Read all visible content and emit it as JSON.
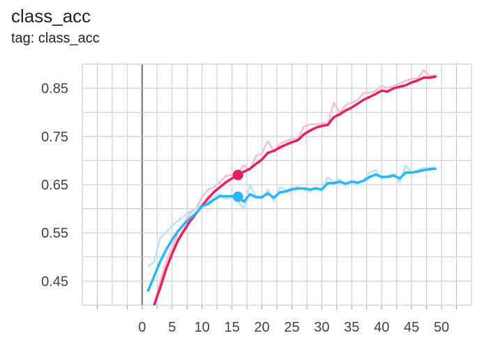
{
  "header": {
    "title": "class_acc",
    "subtitle": "tag: class_acc"
  },
  "colors": {
    "pink": "#e91e63",
    "pink_raw": "#f8bbd0",
    "blue": "#29b6f6",
    "blue_raw": "#b3e5fc",
    "grid": "#c7c7c7",
    "axis": "#9e9e9e"
  },
  "chart_data": {
    "type": "line",
    "title": "class_acc",
    "subtitle": "tag: class_acc",
    "xlim": [
      -10,
      55
    ],
    "ylim": [
      0.4,
      0.9
    ],
    "xticks": [
      "0",
      "5",
      "10",
      "15",
      "20",
      "25",
      "30",
      "35",
      "40",
      "45",
      "50"
    ],
    "xtick_values": [
      0,
      5,
      10,
      15,
      20,
      25,
      30,
      35,
      40,
      45,
      50
    ],
    "yticks": [
      "0.45",
      "0.55",
      "0.65",
      "0.75",
      "0.85"
    ],
    "ytick_values": [
      0.45,
      0.55,
      0.65,
      0.75,
      0.85
    ],
    "grid": true,
    "highlight_x": 16,
    "series": [
      {
        "color": "#e91e63",
        "raw_color": "#f8bbd0",
        "x": [
          2,
          3,
          4,
          5,
          6,
          7,
          8,
          9,
          10,
          11,
          12,
          13,
          14,
          15,
          16,
          17,
          18,
          19,
          20,
          21,
          22,
          23,
          24,
          25,
          26,
          27,
          28,
          29,
          30,
          31,
          32,
          33,
          34,
          35,
          36,
          37,
          38,
          39,
          40,
          41,
          42,
          43,
          44,
          45,
          46,
          47,
          48,
          49
        ],
        "smoothed": [
          0.4,
          0.436,
          0.475,
          0.507,
          0.535,
          0.555,
          0.574,
          0.59,
          0.606,
          0.622,
          0.635,
          0.645,
          0.655,
          0.663,
          0.67,
          0.677,
          0.683,
          0.693,
          0.702,
          0.716,
          0.72,
          0.727,
          0.733,
          0.738,
          0.742,
          0.754,
          0.762,
          0.768,
          0.772,
          0.774,
          0.79,
          0.796,
          0.804,
          0.81,
          0.818,
          0.826,
          0.832,
          0.838,
          0.845,
          0.843,
          0.85,
          0.853,
          0.856,
          0.862,
          0.866,
          0.872,
          0.872,
          0.874
        ],
        "raw": [
          0.4,
          0.45,
          0.49,
          0.52,
          0.55,
          0.57,
          0.59,
          0.6,
          0.625,
          0.64,
          0.645,
          0.655,
          0.668,
          0.67,
          0.675,
          0.69,
          0.68,
          0.71,
          0.715,
          0.74,
          0.72,
          0.735,
          0.74,
          0.745,
          0.745,
          0.77,
          0.775,
          0.775,
          0.778,
          0.775,
          0.82,
          0.8,
          0.815,
          0.82,
          0.826,
          0.84,
          0.84,
          0.845,
          0.855,
          0.85,
          0.855,
          0.86,
          0.865,
          0.87,
          0.87,
          0.888,
          0.875,
          0.878
        ]
      },
      {
        "color": "#29b6f6",
        "raw_color": "#b3e5fc",
        "x": [
          1,
          2,
          3,
          4,
          5,
          6,
          7,
          8,
          9,
          10,
          11,
          12,
          13,
          14,
          15,
          16,
          17,
          18,
          19,
          20,
          21,
          22,
          23,
          24,
          25,
          26,
          27,
          28,
          29,
          30,
          31,
          32,
          33,
          34,
          35,
          36,
          37,
          38,
          39,
          40,
          41,
          42,
          43,
          44,
          45,
          46,
          47,
          48,
          49
        ],
        "smoothed": [
          0.43,
          0.46,
          0.49,
          0.515,
          0.536,
          0.554,
          0.568,
          0.58,
          0.591,
          0.605,
          0.61,
          0.619,
          0.626,
          0.626,
          0.626,
          0.625,
          0.615,
          0.63,
          0.624,
          0.624,
          0.632,
          0.623,
          0.634,
          0.636,
          0.64,
          0.642,
          0.642,
          0.64,
          0.642,
          0.64,
          0.653,
          0.653,
          0.656,
          0.652,
          0.656,
          0.654,
          0.658,
          0.666,
          0.671,
          0.666,
          0.666,
          0.669,
          0.663,
          0.675,
          0.675,
          0.677,
          0.68,
          0.682,
          0.683
        ],
        "raw": [
          0.48,
          0.49,
          0.54,
          0.55,
          0.565,
          0.575,
          0.585,
          0.595,
          0.6,
          0.61,
          0.615,
          0.625,
          0.63,
          0.62,
          0.625,
          0.615,
          0.6,
          0.65,
          0.625,
          0.62,
          0.64,
          0.615,
          0.645,
          0.638,
          0.645,
          0.645,
          0.64,
          0.635,
          0.645,
          0.635,
          0.665,
          0.655,
          0.662,
          0.648,
          0.66,
          0.652,
          0.66,
          0.675,
          0.68,
          0.662,
          0.668,
          0.672,
          0.655,
          0.69,
          0.675,
          0.68,
          0.685,
          0.685,
          0.686
        ]
      }
    ]
  }
}
